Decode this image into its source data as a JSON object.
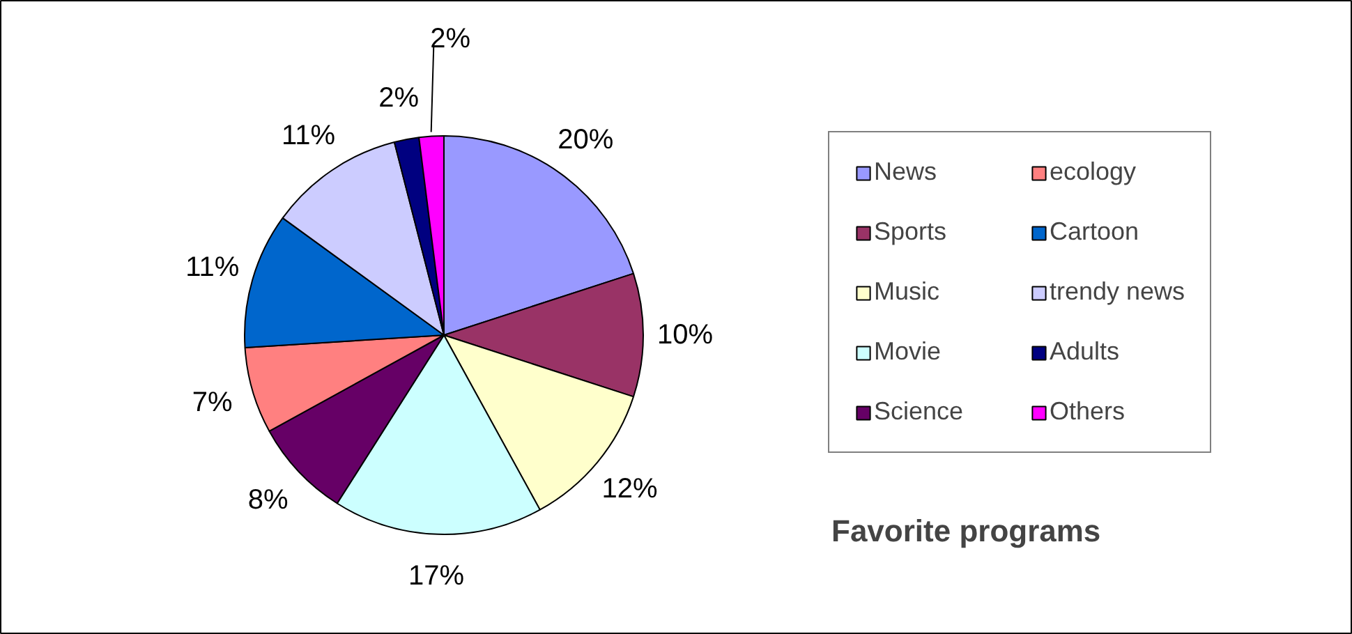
{
  "chart_data": {
    "type": "pie",
    "title": "Favorite programs",
    "categories": [
      "News",
      "Sports",
      "Music",
      "Movie",
      "Science",
      "ecology",
      "Cartoon",
      "trendy news",
      "Adults",
      "Others"
    ],
    "values": [
      20,
      10,
      12,
      17,
      8,
      7,
      11,
      11,
      2,
      2
    ],
    "value_labels": [
      "20%",
      "10%",
      "12%",
      "17%",
      "8%",
      "7%",
      "11%",
      "11%",
      "2%",
      "2%"
    ],
    "colors": [
      "#9999ff",
      "#993366",
      "#ffffcc",
      "#ccffff",
      "#660066",
      "#ff8080",
      "#0066cc",
      "#ccccff",
      "#000080",
      "#ff00ff"
    ],
    "legend": "right"
  }
}
